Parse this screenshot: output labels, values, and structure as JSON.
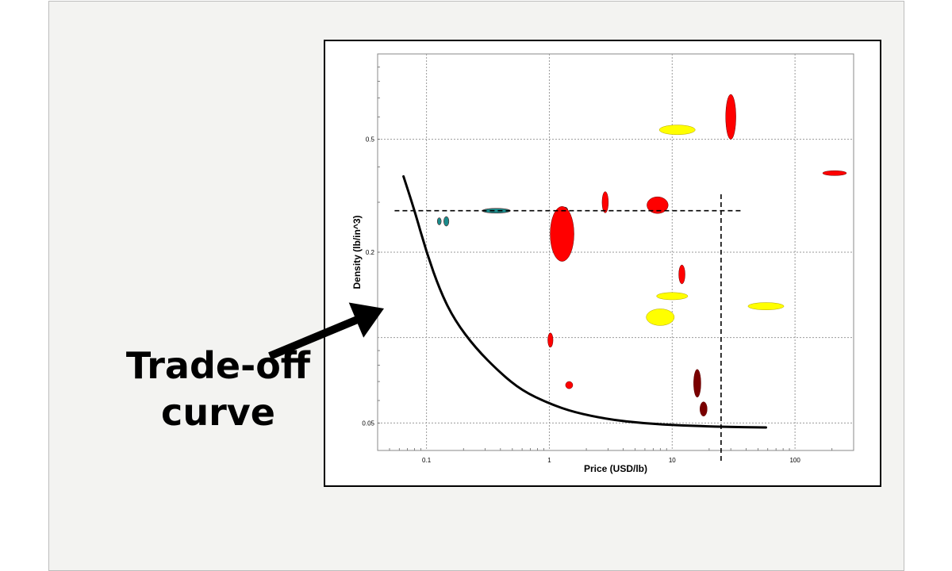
{
  "annotation": {
    "lines": [
      "Trade-off",
      "curve"
    ]
  },
  "colors": {
    "red": "#ff0000",
    "dark_red": "#7a0000",
    "yellow": "#ffff00",
    "teal": "#1b8a8a",
    "grid": "#9a9a9a"
  },
  "chart_data": {
    "type": "scatter",
    "xlabel": "Price (USD/lb)",
    "ylabel": "Density (lb/in^3)",
    "xscale": "log",
    "yscale": "log",
    "xlim": [
      0.04,
      300
    ],
    "ylim": [
      0.04,
      1.0
    ],
    "xticks": [
      0.1,
      1,
      10,
      100
    ],
    "xtick_labels": [
      "0.1",
      "1",
      "10",
      "100"
    ],
    "yticks": [
      0.05,
      0.1,
      0.2,
      0.5
    ],
    "ytick_labels": [
      "0.05",
      "",
      "0.2",
      "0.5"
    ],
    "grid": true,
    "materials": [
      {
        "color": "red",
        "x": 30,
        "y": 0.6,
        "w": 1.1,
        "h": 1.2
      },
      {
        "color": "yellow",
        "x": 11,
        "y": 0.54,
        "w": 1.4,
        "h": 1.04
      },
      {
        "color": "red",
        "x": 210,
        "y": 0.38,
        "w": 1.25,
        "h": 1.02
      },
      {
        "color": "red",
        "x": 2.85,
        "y": 0.3,
        "w": 1.06,
        "h": 1.09
      },
      {
        "color": "red",
        "x": 7.6,
        "y": 0.293,
        "w": 1.22,
        "h": 1.07
      },
      {
        "color": "teal",
        "x": 0.37,
        "y": 0.28,
        "w": 1.3,
        "h": 1.02
      },
      {
        "color": "teal",
        "x": 1.35,
        "y": 0.28,
        "w": 1.05,
        "h": 1.03
      },
      {
        "color": "teal",
        "x": 0.145,
        "y": 0.257,
        "w": 1.05,
        "h": 1.04
      },
      {
        "color": "teal",
        "x": 0.127,
        "y": 0.257,
        "w": 1.03,
        "h": 1.03
      },
      {
        "color": "red",
        "x": 1.27,
        "y": 0.232,
        "w": 1.25,
        "h": 1.25
      },
      {
        "color": "red",
        "x": 12,
        "y": 0.167,
        "w": 1.06,
        "h": 1.08
      },
      {
        "color": "yellow",
        "x": 10,
        "y": 0.14,
        "w": 1.34,
        "h": 1.03
      },
      {
        "color": "yellow",
        "x": 58,
        "y": 0.129,
        "w": 1.4,
        "h": 1.03
      },
      {
        "color": "yellow",
        "x": 8,
        "y": 0.118,
        "w": 1.3,
        "h": 1.07
      },
      {
        "color": "red",
        "x": 1.02,
        "y": 0.098,
        "w": 1.05,
        "h": 1.06
      },
      {
        "color": "dark_red",
        "x": 16,
        "y": 0.069,
        "w": 1.07,
        "h": 1.12
      },
      {
        "color": "red",
        "x": 1.45,
        "y": 0.068,
        "w": 1.07,
        "h": 1.03
      },
      {
        "color": "dark_red",
        "x": 18,
        "y": 0.056,
        "w": 1.07,
        "h": 1.06
      }
    ],
    "tradeoff_curve": [
      [
        0.065,
        0.37
      ],
      [
        0.08,
        0.28
      ],
      [
        0.1,
        0.2
      ],
      [
        0.13,
        0.145
      ],
      [
        0.17,
        0.115
      ],
      [
        0.25,
        0.092
      ],
      [
        0.4,
        0.075
      ],
      [
        0.6,
        0.065
      ],
      [
        1,
        0.0585
      ],
      [
        1.6,
        0.0545
      ],
      [
        3,
        0.0515
      ],
      [
        6,
        0.0498
      ],
      [
        12,
        0.049
      ],
      [
        25,
        0.0485
      ],
      [
        58,
        0.0482
      ]
    ],
    "threshold_lines": {
      "density": 0.28,
      "density_x_range": [
        0.055,
        37
      ],
      "price": 25,
      "price_y_range": [
        0.036,
        0.32
      ]
    },
    "arrow": {
      "from_data_x": 0.02,
      "from_data_y": 0.092,
      "to_data_x": 0.1,
      "to_data_y": 0.134
    }
  }
}
